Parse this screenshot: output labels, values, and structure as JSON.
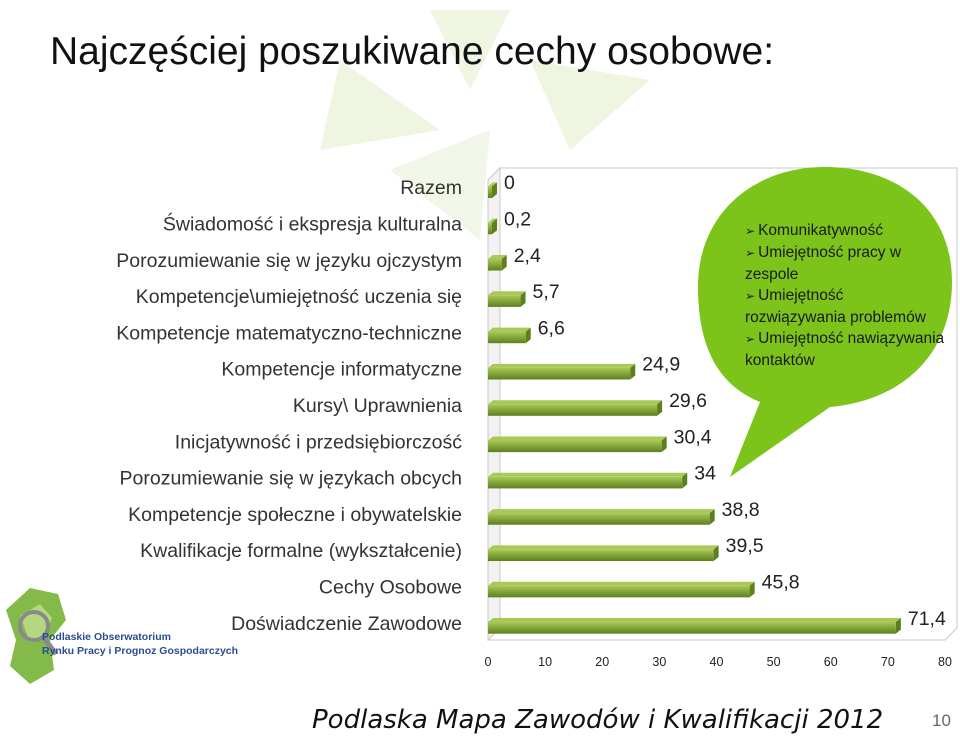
{
  "slide": {
    "title": "Najczęściej poszukiwane cechy osobowe:",
    "footer": "Podlaska Mapa Zawodów i Kwalifikacji 2012",
    "page_number": "10"
  },
  "logo": {
    "line1": "Podlaskie Obserwatorium",
    "line2": "Rynku Pracy i Prognoz Gospodarczych"
  },
  "callout": {
    "items": [
      "Komunikatywność",
      "Umiejętność pracy w zespole",
      "Umiejętność rozwiązywania problemów",
      "Umiejętność nawiązywania kontaktów"
    ],
    "color": "#7cc31a"
  },
  "chart_data": {
    "type": "bar",
    "orientation": "horizontal",
    "categories": [
      "Razem",
      "Świadomość i ekspresja kulturalna",
      "Porozumiewanie się w języku ojczystym",
      "Kompetencje\\umiejętność uczenia się",
      "Kompetencje matematyczno-techniczne",
      "Kompetencje informatyczne",
      "Kursy\\ Uprawnienia",
      "Inicjatywność i przedsiębiorczość",
      "Porozumiewanie się w językach obcych",
      "Kompetencje społeczne i obywatelskie",
      "Kwalifikacje formalne (wykształcenie)",
      "Cechy Osobowe",
      "Doświadczenie Zawodowe"
    ],
    "values": [
      0,
      0.2,
      2.4,
      5.7,
      6.6,
      24.9,
      29.6,
      30.4,
      34,
      38.8,
      39.5,
      45.8,
      71.4
    ],
    "value_labels": [
      "0",
      "0,2",
      "2,4",
      "5,7",
      "6,6",
      "24,9",
      "29,6",
      "30,4",
      "34",
      "38,8",
      "39,5",
      "45,8",
      "71,4"
    ],
    "xlim": [
      0,
      80
    ],
    "xticks": [
      0,
      10,
      20,
      30,
      40,
      50,
      60,
      70,
      80
    ],
    "bar_color": "#5d7f1e",
    "bar_highlight": "#a9c957",
    "grid": "vertical",
    "title": "",
    "xlabel": "",
    "ylabel": ""
  }
}
